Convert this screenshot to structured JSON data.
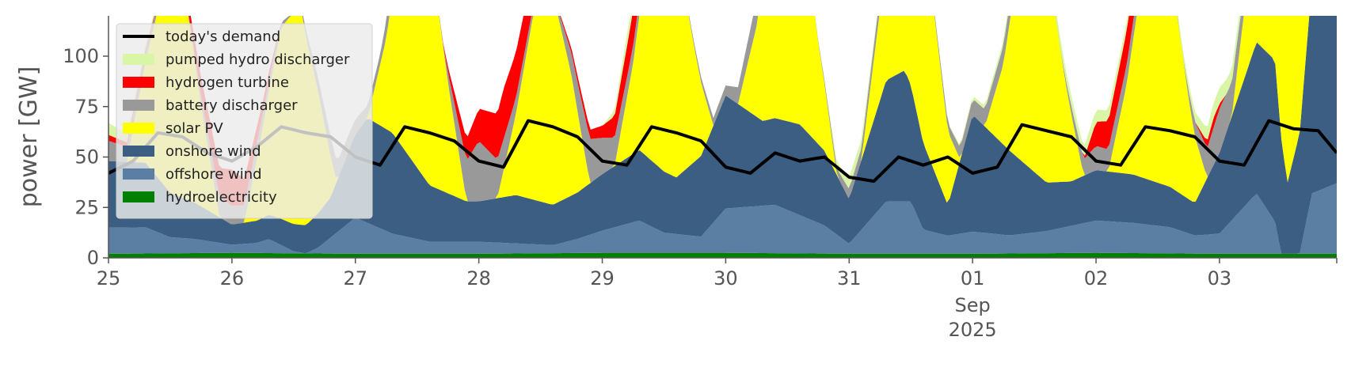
{
  "chart_data": {
    "type": "area",
    "ylabel": "power [GW]",
    "xlabel": "",
    "ylim": [
      0,
      120
    ],
    "yticks": [
      0,
      25,
      50,
      75,
      100
    ],
    "xlim": [
      0,
      9.95
    ],
    "x_unit": "days since Aug 25 2025 00:00 (x values are day fractions)",
    "xticks": [
      {
        "x": 0,
        "label": "25"
      },
      {
        "x": 1,
        "label": "26"
      },
      {
        "x": 2,
        "label": "27"
      },
      {
        "x": 3,
        "label": "28"
      },
      {
        "x": 4,
        "label": "29"
      },
      {
        "x": 5,
        "label": "30"
      },
      {
        "x": 6,
        "label": "31"
      },
      {
        "x": 7,
        "label": "01",
        "sub": [
          "Sep",
          "2025"
        ]
      },
      {
        "x": 8,
        "label": "02"
      },
      {
        "x": 9,
        "label": "03"
      }
    ],
    "legend_position": "top-left",
    "legend_order": [
      "demand",
      "pumped",
      "hydrogen",
      "battery",
      "solar",
      "onshore",
      "offshore",
      "hydro"
    ],
    "stack_order": [
      "hydro",
      "offshore",
      "onshore",
      "solar",
      "battery",
      "hydrogen",
      "pumped"
    ],
    "series": {
      "hydro": {
        "name": "hydroelectricity",
        "color": "#008000",
        "points": [
          [
            0,
            2
          ],
          [
            1,
            2.5
          ],
          [
            2,
            2
          ],
          [
            3,
            2
          ],
          [
            4,
            2.5
          ],
          [
            5,
            2.5
          ],
          [
            6,
            2
          ],
          [
            7,
            2
          ],
          [
            8,
            2.5
          ],
          [
            9,
            2
          ],
          [
            9.95,
            2
          ]
        ]
      },
      "offshore": {
        "name": "offshore wind",
        "color": "#5a7fa3",
        "points": [
          [
            0,
            13
          ],
          [
            0.3,
            13
          ],
          [
            0.5,
            8
          ],
          [
            0.7,
            7
          ],
          [
            1,
            4
          ],
          [
            1.2,
            5
          ],
          [
            1.3,
            7
          ],
          [
            1.5,
            1
          ],
          [
            1.6,
            0
          ],
          [
            1.7,
            3
          ],
          [
            2,
            18
          ],
          [
            2.3,
            10
          ],
          [
            2.6,
            6
          ],
          [
            3,
            6
          ],
          [
            3.3,
            5
          ],
          [
            3.6,
            4
          ],
          [
            3.8,
            7
          ],
          [
            4,
            11
          ],
          [
            4.3,
            16
          ],
          [
            4.5,
            10
          ],
          [
            4.8,
            8
          ],
          [
            5,
            22
          ],
          [
            5.4,
            24
          ],
          [
            5.8,
            14
          ],
          [
            6,
            5
          ],
          [
            6.3,
            26
          ],
          [
            6.5,
            26
          ],
          [
            6.6,
            12
          ],
          [
            6.8,
            9
          ],
          [
            7,
            11
          ],
          [
            7.3,
            9
          ],
          [
            7.6,
            11
          ],
          [
            8,
            16
          ],
          [
            8.3,
            15
          ],
          [
            8.6,
            13
          ],
          [
            8.8,
            9
          ],
          [
            9,
            10
          ],
          [
            9.3,
            30
          ],
          [
            9.45,
            16
          ],
          [
            9.5,
            0
          ],
          [
            9.65,
            0
          ],
          [
            9.75,
            30
          ],
          [
            9.95,
            35
          ]
        ]
      },
      "onshore": {
        "name": "onshore wind",
        "color": "#3b5e82",
        "points": [
          [
            0,
            33
          ],
          [
            0.3,
            32
          ],
          [
            0.5,
            22
          ],
          [
            0.7,
            18
          ],
          [
            1,
            10
          ],
          [
            1.2,
            11
          ],
          [
            1.4,
            13
          ],
          [
            1.6,
            14
          ],
          [
            1.8,
            20
          ],
          [
            2.1,
            52
          ],
          [
            2.3,
            50
          ],
          [
            2.6,
            28
          ],
          [
            2.9,
            20
          ],
          [
            3,
            20
          ],
          [
            3.3,
            24
          ],
          [
            3.6,
            20
          ],
          [
            3.8,
            23
          ],
          [
            4,
            28
          ],
          [
            4.3,
            35
          ],
          [
            4.6,
            28
          ],
          [
            4.8,
            40
          ],
          [
            5,
            56
          ],
          [
            5.3,
            42
          ],
          [
            5.6,
            45
          ],
          [
            5.8,
            37
          ],
          [
            6,
            22
          ],
          [
            6.3,
            60
          ],
          [
            6.45,
            65
          ],
          [
            6.6,
            43
          ],
          [
            6.8,
            15
          ],
          [
            7,
            58
          ],
          [
            7.3,
            42
          ],
          [
            7.6,
            24
          ],
          [
            7.8,
            22
          ],
          [
            8,
            25
          ],
          [
            8.3,
            24
          ],
          [
            8.6,
            20
          ],
          [
            8.8,
            16
          ],
          [
            9,
            40
          ],
          [
            9.3,
            75
          ],
          [
            9.45,
            80
          ],
          [
            9.55,
            35
          ],
          [
            9.65,
            60
          ],
          [
            9.75,
            105
          ],
          [
            9.85,
            100
          ],
          [
            9.95,
            113
          ]
        ]
      },
      "solar": {
        "name": "solar PV",
        "color": "#ffff00",
        "points": [
          [
            0,
            0
          ],
          [
            0.15,
            0
          ],
          [
            0.3,
            50
          ],
          [
            0.45,
            100
          ],
          [
            0.6,
            110
          ],
          [
            0.75,
            50
          ],
          [
            0.9,
            0
          ],
          [
            1.1,
            0
          ],
          [
            1.25,
            45
          ],
          [
            1.4,
            95
          ],
          [
            1.55,
            110
          ],
          [
            1.7,
            60
          ],
          [
            1.85,
            0
          ],
          [
            2.1,
            0
          ],
          [
            2.25,
            45
          ],
          [
            2.4,
            115
          ],
          [
            2.6,
            120
          ],
          [
            2.75,
            55
          ],
          [
            2.9,
            0
          ],
          [
            3.15,
            0
          ],
          [
            3.3,
            40
          ],
          [
            3.45,
            95
          ],
          [
            3.6,
            105
          ],
          [
            3.75,
            60
          ],
          [
            3.9,
            0
          ],
          [
            4.1,
            0
          ],
          [
            4.25,
            45
          ],
          [
            4.4,
            110
          ],
          [
            4.6,
            115
          ],
          [
            4.75,
            55
          ],
          [
            4.9,
            0
          ],
          [
            5.1,
            0
          ],
          [
            5.25,
            45
          ],
          [
            5.4,
            115
          ],
          [
            5.6,
            118
          ],
          [
            5.75,
            50
          ],
          [
            5.9,
            0
          ],
          [
            6.1,
            0
          ],
          [
            6.25,
            45
          ],
          [
            6.4,
            115
          ],
          [
            6.6,
            112
          ],
          [
            6.75,
            55
          ],
          [
            6.9,
            0
          ],
          [
            7.1,
            0
          ],
          [
            7.25,
            40
          ],
          [
            7.4,
            110
          ],
          [
            7.6,
            112
          ],
          [
            7.75,
            50
          ],
          [
            7.9,
            0
          ],
          [
            8.1,
            0
          ],
          [
            8.25,
            45
          ],
          [
            8.4,
            110
          ],
          [
            8.6,
            110
          ],
          [
            8.75,
            50
          ],
          [
            8.9,
            0
          ],
          [
            9.1,
            0
          ],
          [
            9.25,
            50
          ],
          [
            9.4,
            115
          ],
          [
            9.6,
            115
          ],
          [
            9.75,
            40
          ],
          [
            9.95,
            0
          ]
        ]
      },
      "battery": {
        "name": "battery discharger",
        "color": "#999999",
        "points": [
          [
            0,
            10
          ],
          [
            0.3,
            5
          ],
          [
            0.6,
            0
          ],
          [
            0.9,
            10
          ],
          [
            1.2,
            8
          ],
          [
            1.5,
            0
          ],
          [
            1.8,
            10
          ],
          [
            2.2,
            5
          ],
          [
            2.4,
            20
          ],
          [
            2.7,
            0
          ],
          [
            3,
            30
          ],
          [
            3.3,
            8
          ],
          [
            3.6,
            0
          ],
          [
            3.9,
            22
          ],
          [
            4.2,
            10
          ],
          [
            4.6,
            0
          ],
          [
            5,
            5
          ],
          [
            5.4,
            18
          ],
          [
            5.7,
            0
          ],
          [
            6,
            5
          ],
          [
            6.3,
            8
          ],
          [
            6.6,
            0
          ],
          [
            7,
            8
          ],
          [
            7.4,
            10
          ],
          [
            7.7,
            0
          ],
          [
            8,
            12
          ],
          [
            8.4,
            8
          ],
          [
            8.7,
            0
          ],
          [
            9,
            22
          ],
          [
            9.3,
            6
          ],
          [
            9.6,
            0
          ],
          [
            9.95,
            0
          ]
        ]
      },
      "hydrogen": {
        "name": "hydrogen turbine",
        "color": "#ff0000",
        "points": [
          [
            0,
            3
          ],
          [
            0.5,
            0
          ],
          [
            1,
            18
          ],
          [
            1.2,
            8
          ],
          [
            1.4,
            0
          ],
          [
            2.7,
            0
          ],
          [
            3,
            16
          ],
          [
            3.2,
            25
          ],
          [
            3.4,
            20
          ],
          [
            3.6,
            0
          ],
          [
            4,
            6
          ],
          [
            4.3,
            20
          ],
          [
            4.5,
            0
          ],
          [
            7.9,
            0
          ],
          [
            8,
            12
          ],
          [
            8.3,
            18
          ],
          [
            8.5,
            0
          ],
          [
            8.8,
            0
          ],
          [
            8.95,
            5
          ],
          [
            9.05,
            0
          ],
          [
            9.95,
            0
          ]
        ]
      },
      "pumped": {
        "name": "pumped hydro discharger",
        "color": "#d9f5a6",
        "points": [
          [
            0,
            6
          ],
          [
            0.5,
            0
          ],
          [
            4,
            0
          ],
          [
            4.2,
            6
          ],
          [
            4.5,
            0
          ],
          [
            5.8,
            0
          ],
          [
            6,
            6
          ],
          [
            6.3,
            0
          ],
          [
            6.5,
            6
          ],
          [
            6.7,
            0
          ],
          [
            8,
            6
          ],
          [
            8.3,
            4
          ],
          [
            8.5,
            0
          ],
          [
            9,
            8
          ],
          [
            9.3,
            4
          ],
          [
            9.5,
            0
          ],
          [
            9.95,
            0
          ]
        ]
      },
      "demand": {
        "name": "today's demand",
        "color": "#000000",
        "points": [
          [
            0,
            42
          ],
          [
            0.2,
            48
          ],
          [
            0.4,
            62
          ],
          [
            0.6,
            60
          ],
          [
            0.8,
            52
          ],
          [
            1,
            48
          ],
          [
            1.2,
            55
          ],
          [
            1.4,
            65
          ],
          [
            1.6,
            62
          ],
          [
            1.8,
            60
          ],
          [
            2,
            50
          ],
          [
            2.2,
            46
          ],
          [
            2.4,
            65
          ],
          [
            2.6,
            62
          ],
          [
            2.8,
            58
          ],
          [
            3,
            48
          ],
          [
            3.2,
            45
          ],
          [
            3.4,
            68
          ],
          [
            3.6,
            65
          ],
          [
            3.8,
            60
          ],
          [
            4,
            48
          ],
          [
            4.2,
            46
          ],
          [
            4.4,
            65
          ],
          [
            4.6,
            62
          ],
          [
            4.8,
            58
          ],
          [
            5,
            45
          ],
          [
            5.2,
            42
          ],
          [
            5.4,
            52
          ],
          [
            5.6,
            48
          ],
          [
            5.8,
            50
          ],
          [
            6,
            40
          ],
          [
            6.2,
            38
          ],
          [
            6.4,
            50
          ],
          [
            6.6,
            46
          ],
          [
            6.8,
            50
          ],
          [
            7,
            42
          ],
          [
            7.2,
            45
          ],
          [
            7.4,
            66
          ],
          [
            7.6,
            63
          ],
          [
            7.8,
            60
          ],
          [
            8,
            48
          ],
          [
            8.2,
            46
          ],
          [
            8.4,
            65
          ],
          [
            8.6,
            63
          ],
          [
            8.8,
            60
          ],
          [
            9,
            48
          ],
          [
            9.2,
            46
          ],
          [
            9.4,
            68
          ],
          [
            9.6,
            64
          ],
          [
            9.8,
            63
          ],
          [
            9.95,
            52
          ]
        ]
      }
    }
  }
}
